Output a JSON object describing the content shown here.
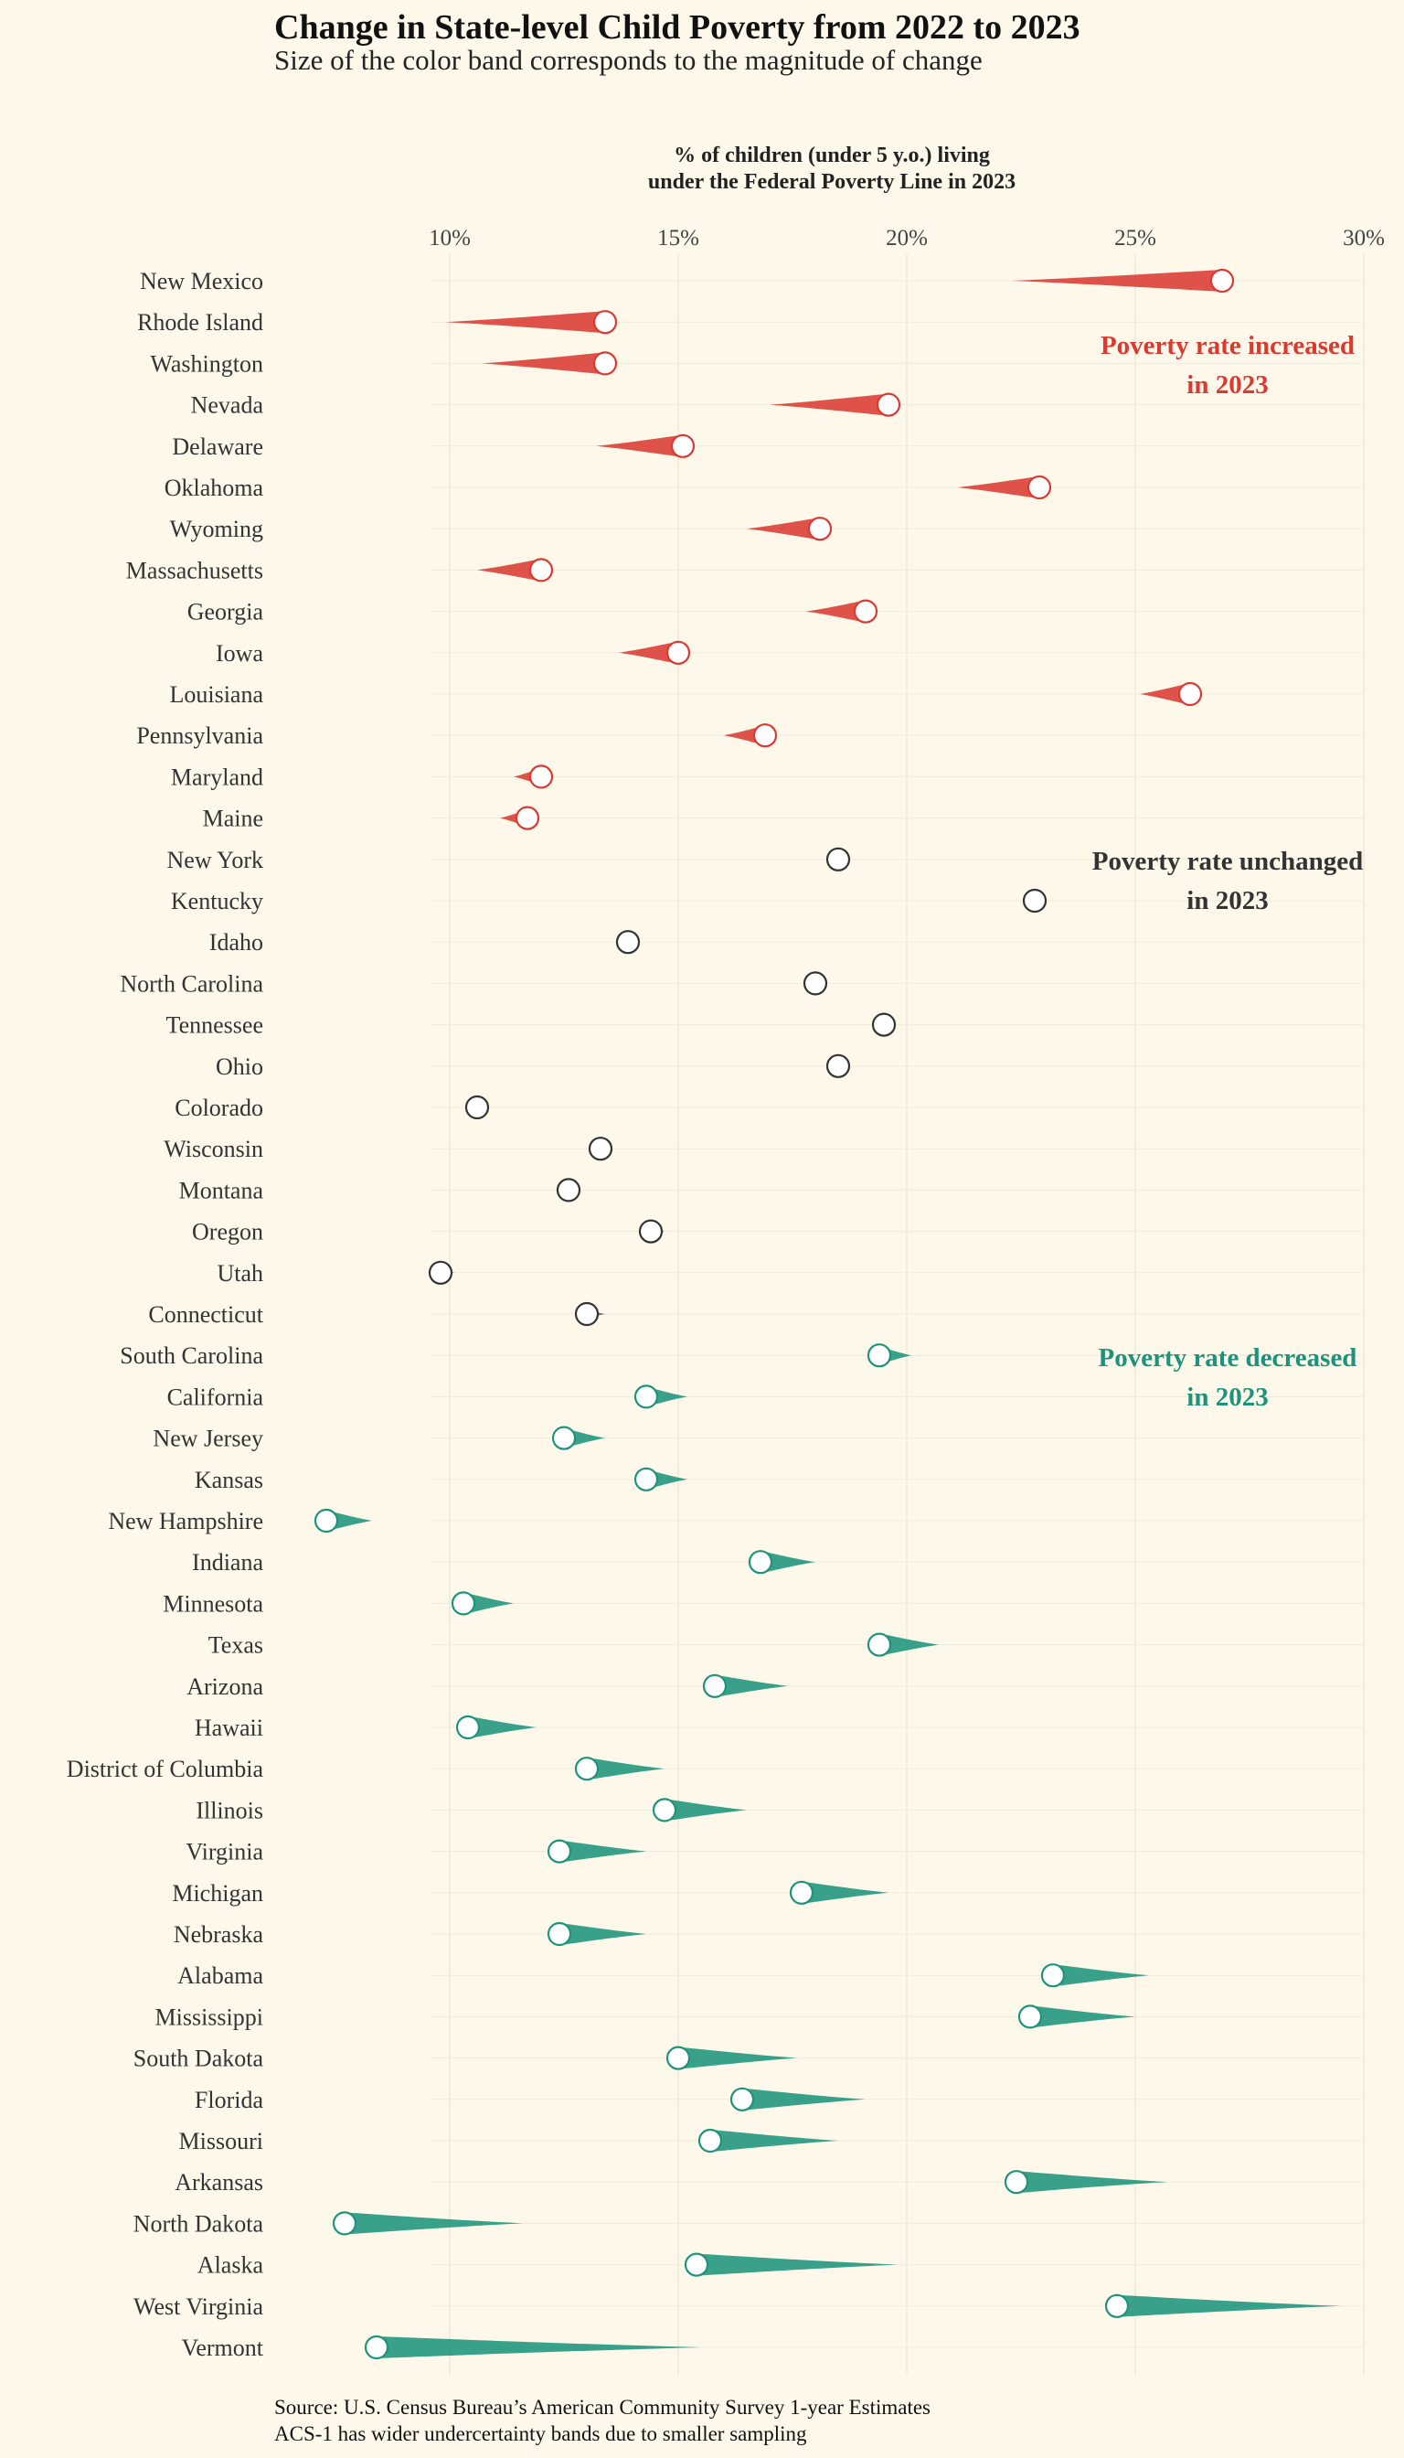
{
  "chart_data": {
    "type": "dot-change",
    "title": "Change in State-level Child Poverty from 2022 to 2023",
    "subtitle": "Size of the color band corresponds to the magnitude of change",
    "x_axis_title": [
      "% of children (under 5 y.o.) living",
      "under the Federal Poverty Line in 2023"
    ],
    "x_ticks": [
      10,
      15,
      20,
      25,
      30
    ],
    "x_tick_labels": [
      "10%",
      "15%",
      "20%",
      "25%",
      "30%"
    ],
    "xlim": [
      10,
      30
    ],
    "annotations": {
      "increased": [
        "Poverty rate increased",
        "in 2023"
      ],
      "unchanged": [
        "Poverty rate unchanged",
        "in 2023"
      ],
      "decreased": [
        "Poverty rate decreased",
        "in 2023"
      ]
    },
    "colors": {
      "increased": "#d93a32",
      "unchanged": "#333333",
      "decreased": "#1e937c",
      "background": "#fdf8ea"
    },
    "source": [
      "Source: U.S. Census Bureau’s American Community Survey 1-year Estimates",
      "ACS-1 has wider undercertainty bands due to smaller sampling"
    ],
    "states": [
      {
        "name": "New Mexico",
        "group": "increased",
        "v2022": 22.3,
        "v2023": 26.9
      },
      {
        "name": "Rhode Island",
        "group": "increased",
        "v2022": 9.9,
        "v2023": 13.4
      },
      {
        "name": "Washington",
        "group": "increased",
        "v2022": 10.7,
        "v2023": 13.4
      },
      {
        "name": "Nevada",
        "group": "increased",
        "v2022": 17.0,
        "v2023": 19.6
      },
      {
        "name": "Delaware",
        "group": "increased",
        "v2022": 13.2,
        "v2023": 15.1
      },
      {
        "name": "Oklahoma",
        "group": "increased",
        "v2022": 21.1,
        "v2023": 22.9
      },
      {
        "name": "Wyoming",
        "group": "increased",
        "v2022": 16.5,
        "v2023": 18.1
      },
      {
        "name": "Massachusetts",
        "group": "increased",
        "v2022": 10.6,
        "v2023": 12.0
      },
      {
        "name": "Georgia",
        "group": "increased",
        "v2022": 17.8,
        "v2023": 19.1
      },
      {
        "name": "Iowa",
        "group": "increased",
        "v2022": 13.7,
        "v2023": 15.0
      },
      {
        "name": "Louisiana",
        "group": "increased",
        "v2022": 25.1,
        "v2023": 26.2
      },
      {
        "name": "Pennsylvania",
        "group": "increased",
        "v2022": 16.0,
        "v2023": 16.9
      },
      {
        "name": "Maryland",
        "group": "increased",
        "v2022": 11.4,
        "v2023": 12.0
      },
      {
        "name": "Maine",
        "group": "increased",
        "v2022": 11.1,
        "v2023": 11.7
      },
      {
        "name": "New York",
        "group": "unchanged",
        "v2022": 18.3,
        "v2023": 18.5
      },
      {
        "name": "Kentucky",
        "group": "unchanged",
        "v2022": 22.8,
        "v2023": 22.8
      },
      {
        "name": "Idaho",
        "group": "unchanged",
        "v2022": 13.9,
        "v2023": 13.9
      },
      {
        "name": "North Carolina",
        "group": "unchanged",
        "v2022": 18.0,
        "v2023": 18.0
      },
      {
        "name": "Tennessee",
        "group": "unchanged",
        "v2022": 19.5,
        "v2023": 19.5
      },
      {
        "name": "Ohio",
        "group": "unchanged",
        "v2022": 18.5,
        "v2023": 18.5
      },
      {
        "name": "Colorado",
        "group": "unchanged",
        "v2022": 10.6,
        "v2023": 10.6
      },
      {
        "name": "Wisconsin",
        "group": "unchanged",
        "v2022": 13.3,
        "v2023": 13.3
      },
      {
        "name": "Montana",
        "group": "unchanged",
        "v2022": 12.7,
        "v2023": 12.6
      },
      {
        "name": "Oregon",
        "group": "unchanged",
        "v2022": 14.7,
        "v2023": 14.4
      },
      {
        "name": "Utah",
        "group": "unchanged",
        "v2022": 10.1,
        "v2023": 9.8
      },
      {
        "name": "Connecticut",
        "group": "unchanged",
        "v2022": 13.4,
        "v2023": 13.0
      },
      {
        "name": "South Carolina",
        "group": "decreased",
        "v2022": 20.1,
        "v2023": 19.4
      },
      {
        "name": "California",
        "group": "decreased",
        "v2022": 15.2,
        "v2023": 14.3
      },
      {
        "name": "New Jersey",
        "group": "decreased",
        "v2022": 13.4,
        "v2023": 12.5
      },
      {
        "name": "Kansas",
        "group": "decreased",
        "v2022": 15.2,
        "v2023": 14.3
      },
      {
        "name": "New Hampshire",
        "group": "decreased",
        "v2022": 8.3,
        "v2023": 7.3
      },
      {
        "name": "Indiana",
        "group": "decreased",
        "v2022": 18.0,
        "v2023": 16.8
      },
      {
        "name": "Minnesota",
        "group": "decreased",
        "v2022": 11.4,
        "v2023": 10.3
      },
      {
        "name": "Texas",
        "group": "decreased",
        "v2022": 20.7,
        "v2023": 19.4
      },
      {
        "name": "Arizona",
        "group": "decreased",
        "v2022": 17.4,
        "v2023": 15.8
      },
      {
        "name": "Hawaii",
        "group": "decreased",
        "v2022": 11.9,
        "v2023": 10.4
      },
      {
        "name": "District of Columbia",
        "group": "decreased",
        "v2022": 14.7,
        "v2023": 13.0
      },
      {
        "name": "Illinois",
        "group": "decreased",
        "v2022": 16.5,
        "v2023": 14.7
      },
      {
        "name": "Virginia",
        "group": "decreased",
        "v2022": 14.3,
        "v2023": 12.4
      },
      {
        "name": "Michigan",
        "group": "decreased",
        "v2022": 19.6,
        "v2023": 17.7
      },
      {
        "name": "Nebraska",
        "group": "decreased",
        "v2022": 14.3,
        "v2023": 12.4
      },
      {
        "name": "Alabama",
        "group": "decreased",
        "v2022": 25.3,
        "v2023": 23.2
      },
      {
        "name": "Mississippi",
        "group": "decreased",
        "v2022": 25.0,
        "v2023": 22.7
      },
      {
        "name": "South Dakota",
        "group": "decreased",
        "v2022": 17.6,
        "v2023": 15.0
      },
      {
        "name": "Florida",
        "group": "decreased",
        "v2022": 19.1,
        "v2023": 16.4
      },
      {
        "name": "Missouri",
        "group": "decreased",
        "v2022": 18.5,
        "v2023": 15.7
      },
      {
        "name": "Arkansas",
        "group": "decreased",
        "v2022": 25.7,
        "v2023": 22.4
      },
      {
        "name": "North Dakota",
        "group": "decreased",
        "v2022": 11.6,
        "v2023": 7.7
      },
      {
        "name": "Alaska",
        "group": "decreased",
        "v2022": 19.8,
        "v2023": 15.4
      },
      {
        "name": "West Virginia",
        "group": "decreased",
        "v2022": 29.5,
        "v2023": 24.6
      },
      {
        "name": "Vermont",
        "group": "decreased",
        "v2022": 15.5,
        "v2023": 8.4
      }
    ]
  }
}
